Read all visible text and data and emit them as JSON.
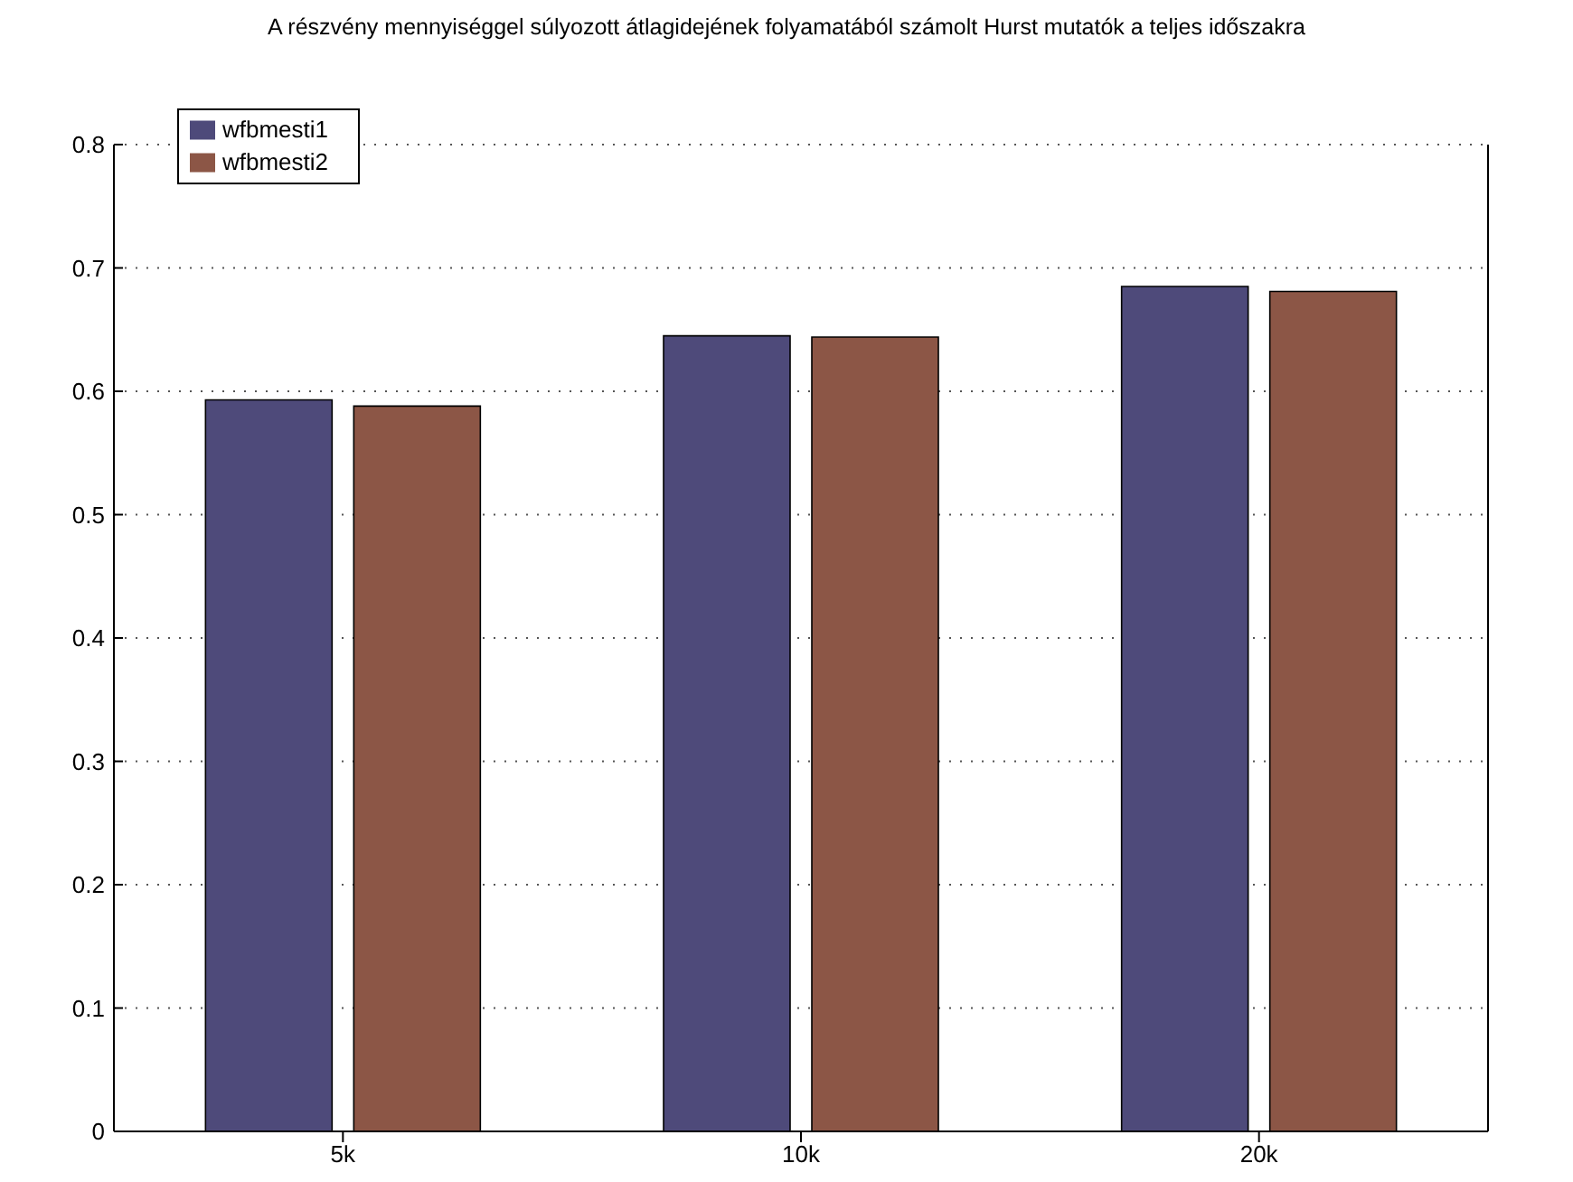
{
  "chart_data": {
    "type": "bar",
    "title": "A részvény mennyiséggel súlyozott átlagidejének folyamatából számolt Hurst mutatók a teljes időszakra",
    "categories": [
      "5k",
      "10k",
      "20k"
    ],
    "series": [
      {
        "name": "wfbmesti1",
        "color": "#4e4a7a",
        "values": [
          0.593,
          0.645,
          0.685
        ]
      },
      {
        "name": "wfbmesti2",
        "color": "#8c5646",
        "values": [
          0.588,
          0.644,
          0.681
        ]
      }
    ],
    "ylim": [
      0,
      0.8
    ],
    "yticks": [
      0,
      0.1,
      0.2,
      0.3,
      0.4,
      0.5,
      0.6,
      0.7,
      0.8
    ],
    "grid": "y",
    "legend": "top left"
  }
}
